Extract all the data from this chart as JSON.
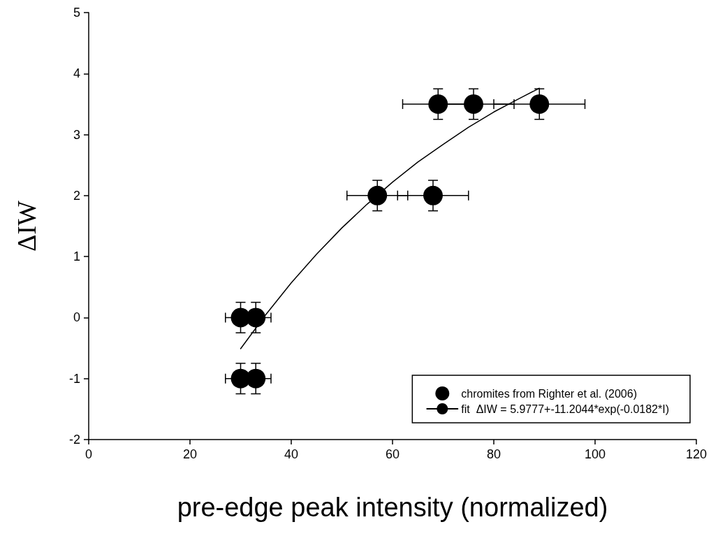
{
  "chart_data": {
    "type": "scatter",
    "xlabel": "pre-edge peak intensity (normalized)",
    "ylabel": "ΔIW",
    "xlim": [
      0,
      120
    ],
    "xticks": [
      0,
      20,
      40,
      60,
      80,
      100,
      120
    ],
    "ylim": [
      -2,
      5
    ],
    "yticks": [
      -2,
      -1,
      0,
      1,
      2,
      3,
      4,
      5
    ],
    "grid": false,
    "legend": "bottom right",
    "marker": "circle",
    "series": [
      {
        "name": "chromites from Righter et al. (2006)",
        "color": "#000000",
        "x": [
          30,
          33,
          30,
          33,
          57,
          68,
          69,
          76,
          89
        ],
        "values": [
          0,
          0,
          -1,
          -1,
          2,
          2,
          3.5,
          3.5,
          3.5
        ],
        "errors": [
          0.25,
          0.25,
          0.25,
          0.25,
          0.25,
          0.25,
          0.25,
          0.25,
          0.25
        ],
        "xerrors": [
          3,
          3,
          3,
          3,
          6,
          7,
          7,
          8,
          9
        ]
      },
      {
        "type": "line",
        "name": "fit  ΔIW = 5.9777+-11.2044*exp(-0.0182*I)",
        "color": "#000000",
        "marker": "none",
        "line_style": "solid",
        "x": [
          30,
          35,
          40,
          45,
          50,
          55,
          60,
          65,
          70,
          75,
          80,
          85,
          89
        ],
        "values": [
          -0.51,
          0.05,
          0.57,
          1.04,
          1.47,
          1.86,
          2.22,
          2.55,
          2.84,
          3.12,
          3.37,
          3.59,
          3.76
        ]
      }
    ]
  }
}
